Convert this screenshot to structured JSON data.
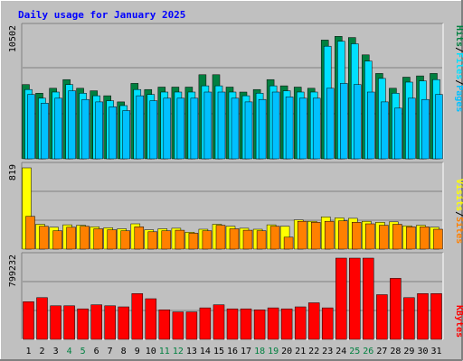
{
  "title": "Daily usage for January 2025",
  "colors": {
    "background": "#C0C0C0",
    "frame_dark": "#808080",
    "frame_light": "#FFFFFF",
    "title_text": "#0000FF",
    "hits": "#008040",
    "files": "#00E0FF",
    "pages": "#00C0FF",
    "visits": "#FFFF00",
    "sites": "#FF8000",
    "kbytes": "#FF0000",
    "separator": "#000000",
    "weekend_day": "#008040",
    "weekday_day": "#000000"
  },
  "chart_data": [
    {
      "type": "bar",
      "panel": "hits-files-pages",
      "categories": [
        "1",
        "2",
        "3",
        "4",
        "5",
        "6",
        "7",
        "8",
        "9",
        "10",
        "11",
        "12",
        "13",
        "14",
        "15",
        "16",
        "17",
        "18",
        "19",
        "20",
        "21",
        "22",
        "23",
        "24",
        "25",
        "26",
        "27",
        "28",
        "29",
        "30",
        "31"
      ],
      "axis_max_label": "10502",
      "ylim": [
        0,
        10502
      ],
      "legend": [
        {
          "label": "Hits",
          "color_key": "hits"
        },
        {
          "label": "Files",
          "color_key": "files"
        },
        {
          "label": "Pages",
          "color_key": "pages"
        }
      ],
      "legend_separator": "/",
      "series": [
        {
          "name": "Hits",
          "values": [
            6000,
            5300,
            5700,
            6400,
            5700,
            5500,
            5100,
            4600,
            6100,
            5600,
            5800,
            5800,
            5800,
            6800,
            6800,
            5800,
            5400,
            5600,
            6400,
            5900,
            5800,
            5700,
            9600,
            9900,
            9800,
            8400,
            6900,
            5700,
            6600,
            6700,
            6900
          ]
        },
        {
          "name": "Files",
          "values": [
            5600,
            4900,
            5400,
            6000,
            5300,
            5100,
            4700,
            4300,
            5600,
            5200,
            5400,
            5400,
            5400,
            5900,
            5900,
            5400,
            5100,
            5300,
            5900,
            5500,
            5400,
            5400,
            9100,
            9500,
            9300,
            7900,
            6500,
            5300,
            6200,
            6300,
            6400
          ]
        },
        {
          "name": "Pages",
          "values": [
            5200,
            4500,
            4900,
            5500,
            4800,
            4600,
            4200,
            3900,
            5100,
            4700,
            4900,
            4900,
            4900,
            5400,
            5400,
            4900,
            4600,
            4800,
            5400,
            5000,
            4900,
            4900,
            5700,
            6100,
            6000,
            5400,
            4600,
            4100,
            4900,
            4800,
            5200
          ]
        }
      ],
      "weekend_days": [
        4,
        5,
        11,
        12,
        18,
        19,
        25,
        26
      ]
    },
    {
      "type": "bar",
      "panel": "visits-sites",
      "categories": [
        "1",
        "2",
        "3",
        "4",
        "5",
        "6",
        "7",
        "8",
        "9",
        "10",
        "11",
        "12",
        "13",
        "14",
        "15",
        "16",
        "17",
        "18",
        "19",
        "20",
        "21",
        "22",
        "23",
        "24",
        "25",
        "26",
        "27",
        "28",
        "29",
        "30",
        "31"
      ],
      "axis_max_label": "819",
      "ylim": [
        0,
        819
      ],
      "legend": [
        {
          "label": "Visits",
          "color_key": "visits"
        },
        {
          "label": "Sites",
          "color_key": "sites"
        }
      ],
      "legend_separator": "/",
      "series": [
        {
          "name": "Visits",
          "values": [
            819,
            250,
            220,
            245,
            240,
            225,
            215,
            205,
            255,
            195,
            205,
            210,
            170,
            200,
            250,
            230,
            210,
            200,
            245,
            230,
            295,
            280,
            325,
            315,
            310,
            280,
            270,
            275,
            235,
            240,
            220
          ]
        },
        {
          "name": "Sites",
          "values": [
            330,
            230,
            185,
            220,
            230,
            205,
            195,
            185,
            225,
            175,
            185,
            190,
            160,
            185,
            240,
            205,
            190,
            185,
            230,
            120,
            280,
            270,
            280,
            285,
            270,
            255,
            240,
            250,
            225,
            225,
            200
          ]
        }
      ]
    },
    {
      "type": "bar",
      "panel": "kbytes",
      "categories": [
        "1",
        "2",
        "3",
        "4",
        "5",
        "6",
        "7",
        "8",
        "9",
        "10",
        "11",
        "12",
        "13",
        "14",
        "15",
        "16",
        "17",
        "18",
        "19",
        "20",
        "21",
        "22",
        "23",
        "24",
        "25",
        "26",
        "27",
        "28",
        "29",
        "30",
        "31"
      ],
      "axis_max_label": "799232",
      "ylim": [
        0,
        799232
      ],
      "legend": [
        {
          "label": "KBytes",
          "color_key": "kbytes"
        }
      ],
      "series": [
        {
          "name": "KBytes",
          "values": [
            370000,
            410000,
            330000,
            330000,
            300000,
            340000,
            330000,
            320000,
            450000,
            400000,
            290000,
            270000,
            270000,
            310000,
            340000,
            300000,
            300000,
            290000,
            310000,
            300000,
            320000,
            360000,
            310000,
            799232,
            799232,
            799232,
            440000,
            600000,
            410000,
            450000,
            450000
          ]
        }
      ]
    }
  ]
}
